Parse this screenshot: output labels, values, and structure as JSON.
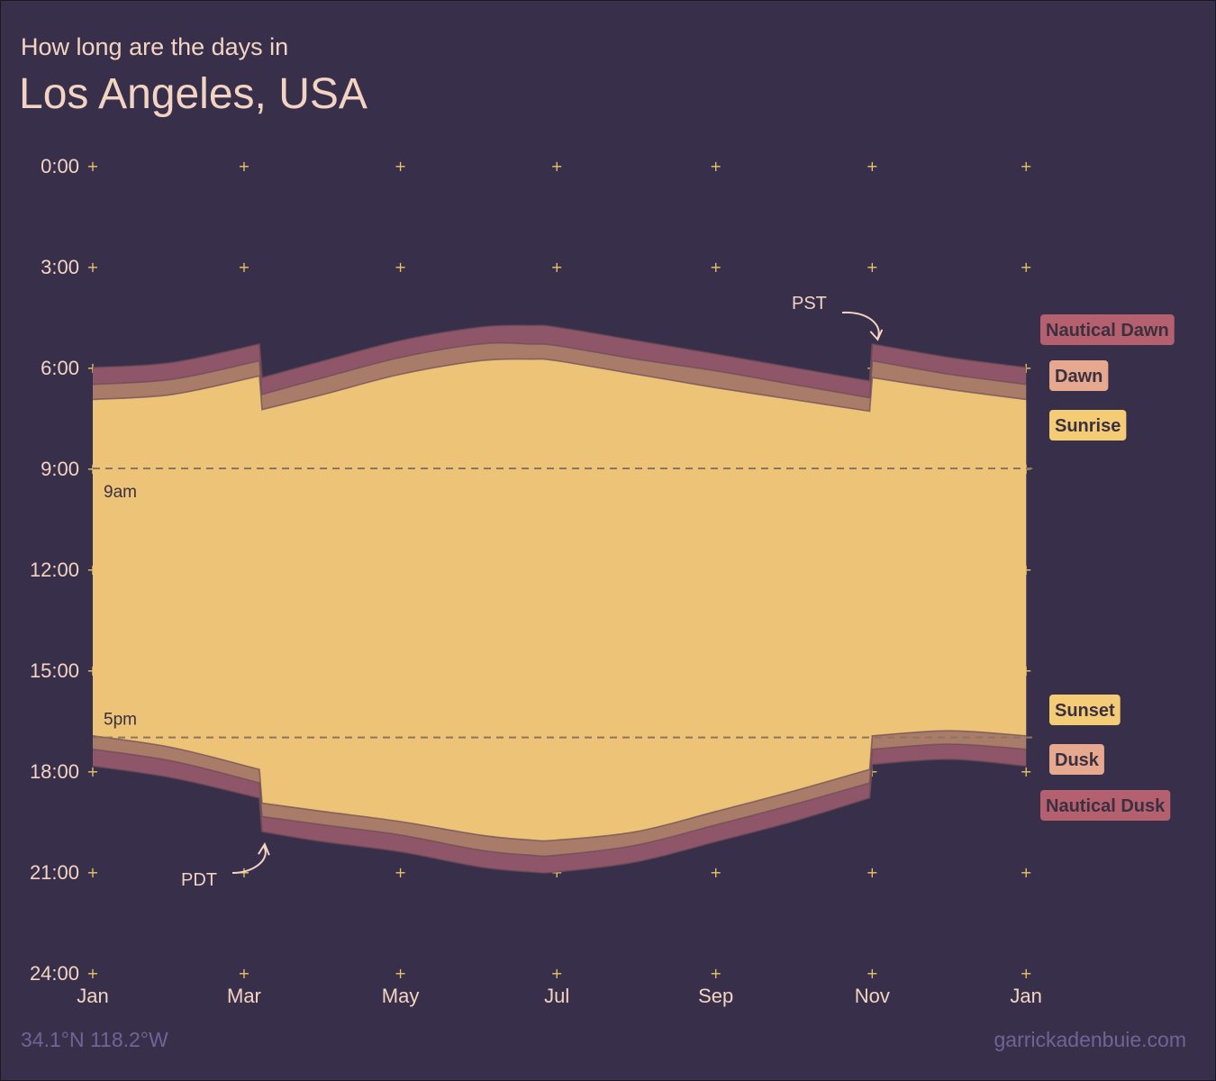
{
  "header": {
    "subtitle": "How long are the days in",
    "title": "Los Angeles, USA"
  },
  "footer": {
    "coordinates": "34.1°N 118.2°W",
    "credit": "garrickadenbuie.com"
  },
  "colors": {
    "background": "#38304a",
    "nautical": "#8f566a",
    "civil": "#a87c69",
    "day": "#ecc377",
    "text": "#f3d3c2",
    "grid": "#e9c46a",
    "reference_line": "#8a7560",
    "legend_nautical": "#b5606f",
    "legend_civil": "#e6a88e",
    "legend_sun": "#f5cc76",
    "footer_text": "#6f6495"
  },
  "chart_data": {
    "type": "area",
    "x_ticks": [
      "Jan",
      "Mar",
      "May",
      "Jul",
      "Sep",
      "Nov",
      "Jan"
    ],
    "y_ticks": [
      "0:00",
      "3:00",
      "6:00",
      "9:00",
      "12:00",
      "15:00",
      "18:00",
      "21:00",
      "24:00"
    ],
    "ylim": [
      0,
      24
    ],
    "y_reversed": true,
    "grid": "plus markers",
    "legend_position": "right",
    "reference_lines": [
      {
        "value": 9,
        "label": "9am"
      },
      {
        "value": 17,
        "label": "5pm"
      }
    ],
    "annotations": [
      {
        "label": "PDT",
        "date": "Mar 8"
      },
      {
        "label": "PST",
        "date": "Nov 1"
      }
    ],
    "x_dates": [
      "Jan 1",
      "Feb 1",
      "Mar 7",
      "Mar 8",
      "Apr 1",
      "May 1",
      "Jun 1",
      "Jun 21",
      "Jul 1",
      "Aug 1",
      "Sep 1",
      "Oct 1",
      "Oct 31",
      "Nov 1",
      "Dec 1",
      "Dec 31"
    ],
    "series": [
      {
        "name": "Nautical Dawn",
        "values": [
          6.0,
          5.85,
          5.3,
          6.3,
          5.8,
          5.2,
          4.8,
          4.75,
          4.8,
          5.2,
          5.6,
          6.0,
          6.4,
          5.3,
          5.7,
          6.0
        ]
      },
      {
        "name": "Dawn",
        "values": [
          6.5,
          6.35,
          5.8,
          6.8,
          6.3,
          5.7,
          5.3,
          5.3,
          5.35,
          5.75,
          6.1,
          6.5,
          6.9,
          5.8,
          6.2,
          6.5
        ]
      },
      {
        "name": "Sunrise",
        "values": [
          6.95,
          6.8,
          6.25,
          7.25,
          6.8,
          6.2,
          5.8,
          5.75,
          5.8,
          6.2,
          6.6,
          6.95,
          7.3,
          6.3,
          6.65,
          6.95
        ]
      },
      {
        "name": "Sunset",
        "values": [
          16.95,
          17.3,
          17.95,
          18.95,
          19.2,
          19.5,
          19.9,
          20.05,
          20.05,
          19.8,
          19.2,
          18.6,
          17.95,
          16.95,
          16.8,
          16.95
        ]
      },
      {
        "name": "Dusk",
        "values": [
          17.35,
          17.7,
          18.35,
          19.35,
          19.6,
          19.9,
          20.35,
          20.5,
          20.5,
          20.2,
          19.6,
          19.0,
          18.35,
          17.35,
          17.2,
          17.35
        ]
      },
      {
        "name": "Nautical Dusk",
        "values": [
          17.85,
          18.2,
          18.8,
          19.8,
          20.1,
          20.4,
          20.85,
          21.0,
          21.0,
          20.7,
          20.1,
          19.5,
          18.8,
          17.8,
          17.65,
          17.85
        ]
      }
    ],
    "legend": [
      {
        "label": "Nautical Dawn",
        "kind": "nautical",
        "row": "top"
      },
      {
        "label": "Dawn",
        "kind": "civil",
        "row": "top"
      },
      {
        "label": "Sunrise",
        "kind": "sun",
        "row": "top"
      },
      {
        "label": "Sunset",
        "kind": "sun",
        "row": "bottom"
      },
      {
        "label": "Dusk",
        "kind": "civil",
        "row": "bottom"
      },
      {
        "label": "Nautical Dusk",
        "kind": "nautical",
        "row": "bottom"
      }
    ]
  }
}
